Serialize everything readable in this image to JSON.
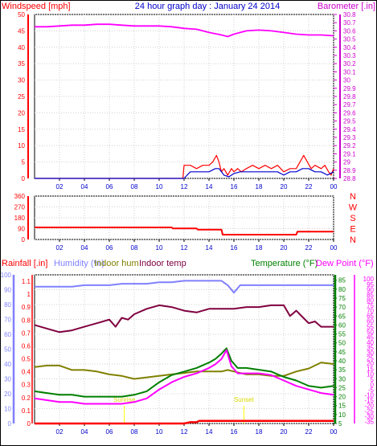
{
  "chart_data": [
    {
      "type": "line",
      "title": "24 hour graph day : January 24 2014",
      "left_label": "Windspeed [mph]",
      "right_label": "Barometer [.in]",
      "x_ticks": [
        "02",
        "04",
        "06",
        "08",
        "10",
        "12",
        "14",
        "16",
        "18",
        "20",
        "22",
        "00"
      ],
      "y_left_ticks": [
        "0",
        "5",
        "10",
        "15",
        "20",
        "25",
        "30",
        "35",
        "40",
        "45",
        "50"
      ],
      "y_left_range": [
        0,
        50
      ],
      "y_right_ticks": [
        "28.8",
        "28.9",
        "29",
        "29.1",
        "29.2",
        "29.3",
        "29.4",
        "29.5",
        "29.6",
        "29.7",
        "29.8",
        "29.9",
        "30",
        "30.1",
        "30.2",
        "30.3",
        "30.4",
        "30.5",
        "30.6",
        "30.7",
        "30.8"
      ],
      "y_right_range": [
        28.8,
        30.8
      ],
      "grid": true,
      "colors": {
        "barometer": "#ff00ff",
        "gust": "#ff0000",
        "wind": "#0000cc",
        "axis_left": "#ff0000",
        "axis_right": "#cc00cc",
        "title": "#0000cc"
      },
      "x_range": [
        0,
        24
      ],
      "series": [
        {
          "key": "barometer",
          "axis": "right",
          "x": [
            0,
            1,
            2,
            3,
            4,
            5,
            6,
            7,
            8,
            9,
            10,
            11,
            12,
            13,
            14,
            15,
            15.5,
            16,
            17,
            18,
            19,
            20,
            21,
            22,
            23,
            24
          ],
          "y": [
            30.65,
            30.65,
            30.66,
            30.67,
            30.67,
            30.68,
            30.68,
            30.67,
            30.66,
            30.66,
            30.66,
            30.65,
            30.63,
            30.62,
            30.58,
            30.55,
            30.53,
            30.56,
            30.6,
            30.61,
            30.6,
            30.58,
            30.56,
            30.55,
            30.55,
            30.54
          ]
        },
        {
          "key": "gust",
          "axis": "left",
          "x": [
            0,
            11.9,
            12,
            12.5,
            13,
            13.5,
            14,
            14.3,
            14.6,
            14.8,
            15,
            15.2,
            15.5,
            15.8,
            16,
            16.3,
            16.6,
            17,
            17.5,
            18,
            18.5,
            19,
            19.5,
            20,
            20.5,
            21,
            21.3,
            21.6,
            21.9,
            22.2,
            22.5,
            23,
            23.3,
            23.6,
            23.8,
            24
          ],
          "y": [
            0,
            0,
            4,
            4,
            3,
            4,
            4,
            5,
            7,
            5,
            2,
            3,
            1,
            3,
            2,
            3,
            2,
            3,
            4,
            3,
            4,
            3,
            4,
            2,
            3,
            3,
            5,
            7,
            5,
            3,
            4,
            3,
            4,
            2,
            1,
            3
          ]
        },
        {
          "key": "wind",
          "axis": "left",
          "x": [
            0,
            12,
            12.5,
            13,
            13.5,
            14,
            14.5,
            14.8,
            15.2,
            15.6,
            16,
            16.5,
            17,
            17.5,
            18,
            18.5,
            19,
            19.5,
            20,
            20.5,
            21,
            21.5,
            22,
            22.5,
            23,
            23.5,
            24
          ],
          "y": [
            0,
            0,
            2,
            2,
            2,
            2,
            3,
            3,
            1,
            0.5,
            1.5,
            2,
            2,
            2,
            2,
            2,
            2,
            2,
            1,
            2,
            2,
            3,
            3,
            2,
            2,
            1,
            2
          ]
        }
      ]
    },
    {
      "type": "line",
      "y_right_labels": [
        "N",
        "W",
        "S",
        "E",
        "N"
      ],
      "y_left_ticks": [
        "0",
        "90",
        "180",
        "270",
        "360"
      ],
      "y_range": [
        0,
        360
      ],
      "x_ticks": [
        "02",
        "04",
        "06",
        "08",
        "10",
        "12",
        "14",
        "16",
        "18",
        "20",
        "22",
        "00"
      ],
      "x_range": [
        0,
        24
      ],
      "grid": true,
      "colors": {
        "direction": "#ff0000",
        "axis": "#ff0000"
      },
      "series": [
        {
          "key": "direction",
          "x": [
            0,
            11,
            11.1,
            13,
            13.1,
            15,
            15.1,
            21,
            21.1,
            24
          ],
          "y": [
            100,
            100,
            92,
            92,
            82,
            82,
            40,
            40,
            65,
            65
          ]
        }
      ]
    },
    {
      "type": "line",
      "labels": {
        "rainfall": "Rainfall [.in]",
        "humidity": "Humidity (%)",
        "indoor_hum": "Indoor hum",
        "indoor_temp": "Indoor temp",
        "temperature": "Temperature (°F)",
        "dew_point": "Dew Point (°F)"
      },
      "y_rain_ticks": [
        "0",
        "0.1",
        "0.2",
        "0.3",
        "0.4",
        "0.5",
        "0.6",
        "0.7",
        "0.8",
        "0.9",
        "1",
        "1.1"
      ],
      "y_hum_ticks": [
        "0",
        "10",
        "20",
        "30",
        "40",
        "50",
        "60",
        "70",
        "80",
        "90",
        "100"
      ],
      "y_temp_ticks": [
        "5",
        "10",
        "15",
        "20",
        "25",
        "30",
        "35",
        "40",
        "45",
        "50",
        "55",
        "60",
        "65",
        "70",
        "75",
        "80",
        "85"
      ],
      "y_dew_ticks": [
        "-35",
        "-30",
        "-25",
        "-20",
        "-15",
        "-10",
        "-5",
        "0",
        "5",
        "10",
        "15",
        "20",
        "25",
        "30",
        "35",
        "40",
        "45",
        "50",
        "55",
        "60",
        "65",
        "70",
        "75",
        "80",
        "85",
        "90",
        "95",
        "100"
      ],
      "y_temp_range": [
        5,
        88
      ],
      "y_hum_range": [
        0,
        100
      ],
      "y_rain_range": [
        0,
        1.15
      ],
      "x_ticks": [
        "02",
        "04",
        "06",
        "08",
        "10",
        "12",
        "14",
        "16",
        "18",
        "20",
        "22",
        "00"
      ],
      "x_range": [
        0,
        24
      ],
      "grid": true,
      "annotations": [
        {
          "text": "Sunrise",
          "x": 7.2
        },
        {
          "text": "Sunset",
          "x": 16.8
        }
      ],
      "colors": {
        "rainfall": "#ff0000",
        "humidity": "#8080ff",
        "indoor_hum": "#808000",
        "indoor_temp": "#800040",
        "temperature": "#008000",
        "dew_point": "#ff00ff",
        "sun": "#ffff00"
      },
      "series": [
        {
          "key": "humidity",
          "axis": "hum",
          "x": [
            0,
            1,
            2,
            3,
            4,
            5,
            6,
            7,
            8,
            9,
            10,
            11,
            12,
            13,
            14,
            15,
            15.5,
            16,
            16.5,
            17,
            18,
            19,
            20,
            21,
            22,
            23,
            24
          ],
          "y": [
            92,
            92,
            92,
            92,
            93,
            93,
            93,
            94,
            94,
            94,
            95,
            95,
            96,
            96,
            96,
            96,
            93,
            88,
            93,
            93,
            93,
            93,
            93,
            93,
            93,
            93,
            93
          ]
        },
        {
          "key": "indoor_temp",
          "axis": "temp",
          "x": [
            0,
            1,
            2,
            3,
            4,
            5,
            6,
            6.5,
            7,
            7.5,
            8,
            9,
            10,
            11,
            12,
            13,
            14,
            15,
            16,
            17,
            18,
            19,
            20,
            20.5,
            21,
            22,
            22.5,
            23,
            24
          ],
          "y": [
            60,
            58,
            56,
            57,
            59,
            61,
            63,
            59,
            64,
            63,
            66,
            69,
            71,
            70,
            68,
            67,
            69,
            69,
            69,
            70,
            70,
            71,
            71,
            65,
            68,
            61,
            62,
            59,
            59
          ]
        },
        {
          "key": "indoor_hum",
          "axis": "hum",
          "x": [
            0,
            1,
            2,
            3,
            4,
            5,
            6,
            7,
            8,
            9,
            10,
            11,
            12,
            13,
            14,
            15,
            15.5,
            16,
            17,
            18,
            19,
            20,
            21,
            22,
            23,
            24
          ],
          "y": [
            38,
            39,
            39,
            36,
            36,
            35,
            33,
            32,
            30,
            31,
            32,
            33,
            34,
            35,
            35,
            35,
            36,
            35,
            33,
            33,
            32,
            32,
            35,
            37,
            41,
            40
          ]
        },
        {
          "key": "temperature",
          "axis": "temp",
          "x": [
            0,
            1,
            2,
            3,
            4,
            5,
            6,
            7,
            8,
            9,
            10,
            11,
            12,
            13,
            14,
            14.5,
            15,
            15.4,
            15.8,
            16.3,
            17,
            18,
            19,
            20,
            21,
            22,
            23,
            24
          ],
          "y": [
            23,
            22,
            21,
            21,
            20,
            20,
            20,
            20,
            21,
            23,
            28,
            32,
            34,
            36,
            39,
            41,
            44,
            47,
            40,
            36,
            36,
            35,
            34,
            31,
            29,
            26,
            25,
            26
          ]
        },
        {
          "key": "dew_point",
          "axis": "temp",
          "x": [
            0,
            1,
            2,
            3,
            4,
            5,
            6,
            7,
            8,
            9,
            10,
            11,
            12,
            13,
            14,
            14.5,
            15,
            15.4,
            15.8,
            16.3,
            17,
            18,
            19,
            20,
            21,
            22,
            23,
            24
          ],
          "y": [
            19,
            18,
            17,
            17,
            16,
            16,
            16,
            16,
            17,
            19,
            24,
            28,
            31,
            33,
            36,
            38,
            41,
            46,
            37,
            33,
            33,
            33,
            32,
            29,
            26,
            24,
            22,
            21
          ]
        },
        {
          "key": "rainfall",
          "axis": "rain",
          "x": [
            0,
            12,
            12.5,
            13,
            13.2,
            24
          ],
          "y": [
            0,
            0,
            0.01,
            0.01,
            0.02,
            0.02
          ]
        }
      ]
    }
  ]
}
